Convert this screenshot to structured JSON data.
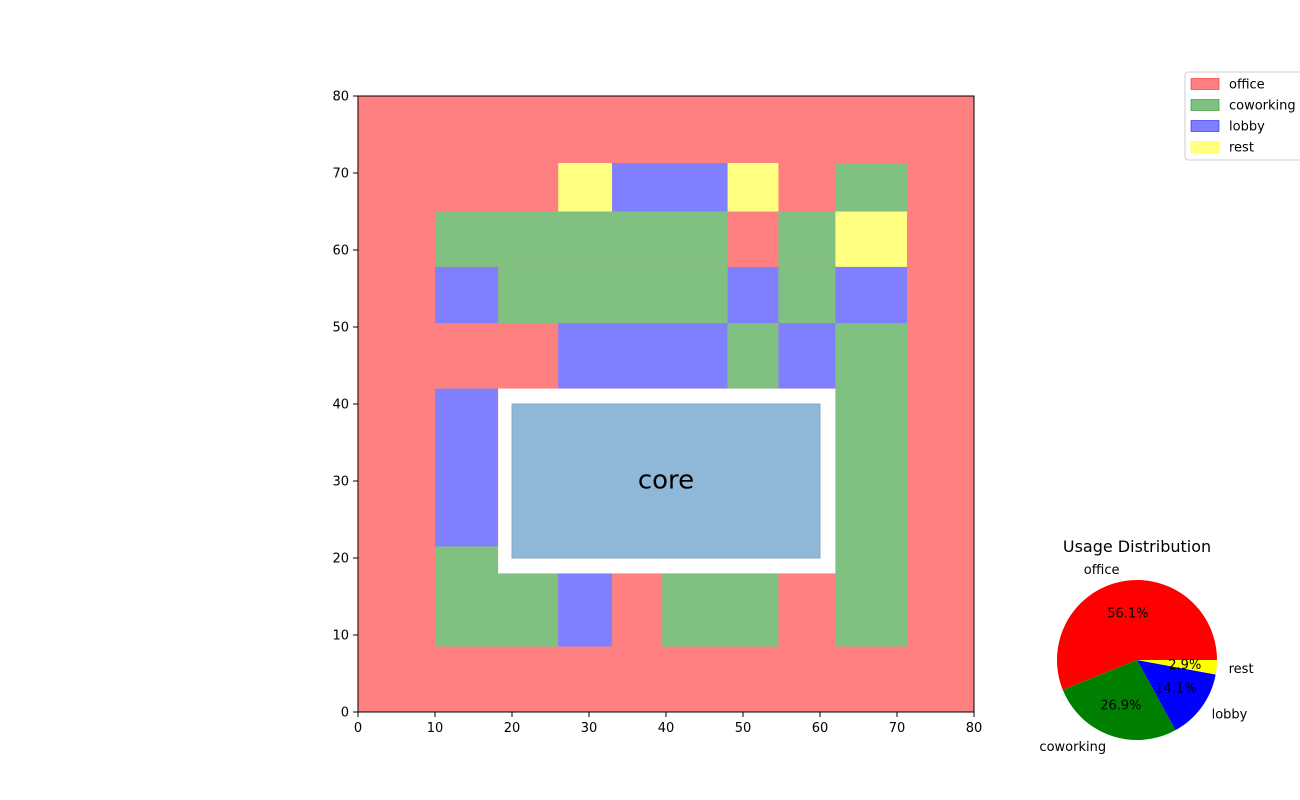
{
  "colors": {
    "office": "#ff8080",
    "coworking": "#80c080",
    "lobby": "#8080ff",
    "rest": "#ffff80",
    "core": "#8fb8d8",
    "pie_office": "#ff0000",
    "pie_coworking": "#008000",
    "pie_lobby": "#0000ff",
    "pie_rest": "#ffff00"
  },
  "chart_data": [
    {
      "type": "heatmap",
      "xlim": [
        0,
        80
      ],
      "ylim": [
        0,
        80
      ],
      "xticks": [
        0,
        10,
        20,
        30,
        40,
        50,
        60,
        70,
        80
      ],
      "yticks": [
        0,
        10,
        20,
        30,
        40,
        50,
        60,
        70,
        80
      ],
      "xtick_labels": [
        "0",
        "10",
        "20",
        "30",
        "40",
        "50",
        "60",
        "70",
        "80"
      ],
      "ytick_labels": [
        "0",
        "10",
        "20",
        "30",
        "40",
        "50",
        "60",
        "70",
        "80"
      ],
      "background_usage": "office",
      "zones": [
        {
          "usage": "rest",
          "x": [
            26,
            33
          ],
          "y": [
            65,
            71.3
          ]
        },
        {
          "usage": "lobby",
          "x": [
            33,
            48
          ],
          "y": [
            65,
            71.3
          ]
        },
        {
          "usage": "rest",
          "x": [
            48,
            54.6
          ],
          "y": [
            65,
            71.3
          ]
        },
        {
          "usage": "coworking",
          "x": [
            62,
            71.3
          ],
          "y": [
            65,
            71.3
          ]
        },
        {
          "usage": "coworking",
          "x": [
            10,
            48
          ],
          "y": [
            57.8,
            65
          ]
        },
        {
          "usage": "coworking",
          "x": [
            54.6,
            62
          ],
          "y": [
            57.8,
            65
          ]
        },
        {
          "usage": "rest",
          "x": [
            62,
            71.3
          ],
          "y": [
            57.8,
            65
          ]
        },
        {
          "usage": "lobby",
          "x": [
            10,
            18.2
          ],
          "y": [
            50.5,
            57.8
          ]
        },
        {
          "usage": "coworking",
          "x": [
            18.2,
            48
          ],
          "y": [
            50.5,
            57.8
          ]
        },
        {
          "usage": "lobby",
          "x": [
            48,
            54.6
          ],
          "y": [
            50.5,
            57.8
          ]
        },
        {
          "usage": "coworking",
          "x": [
            54.6,
            62
          ],
          "y": [
            50.5,
            57.8
          ]
        },
        {
          "usage": "lobby",
          "x": [
            62,
            71.3
          ],
          "y": [
            50.5,
            57.8
          ]
        },
        {
          "usage": "lobby",
          "x": [
            26,
            48
          ],
          "y": [
            42,
            50.5
          ]
        },
        {
          "usage": "coworking",
          "x": [
            48,
            54.6
          ],
          "y": [
            42,
            50.5
          ]
        },
        {
          "usage": "lobby",
          "x": [
            54.6,
            62
          ],
          "y": [
            42,
            50.5
          ]
        },
        {
          "usage": "coworking",
          "x": [
            62,
            71.3
          ],
          "y": [
            8.5,
            50.5
          ]
        },
        {
          "usage": "lobby",
          "x": [
            10,
            18.2
          ],
          "y": [
            21.5,
            42
          ]
        },
        {
          "usage": "coworking",
          "x": [
            10,
            26
          ],
          "y": [
            8.5,
            21.5
          ]
        },
        {
          "usage": "lobby",
          "x": [
            26,
            33
          ],
          "y": [
            8.5,
            18
          ]
        },
        {
          "usage": "coworking",
          "x": [
            39.5,
            54.6
          ],
          "y": [
            8.5,
            18
          ]
        }
      ],
      "core_clearance": {
        "x": [
          18.2,
          62
        ],
        "y": [
          18,
          42
        ]
      },
      "core": {
        "label": "core",
        "x": [
          20,
          60
        ],
        "y": [
          20,
          40
        ],
        "label_x": 40,
        "label_y": 30
      },
      "legend": {
        "placement": "upper-right-outside",
        "entries": [
          "office",
          "coworking",
          "lobby",
          "rest"
        ]
      }
    },
    {
      "type": "pie",
      "title": "Usage Distribution",
      "labels": [
        "office",
        "coworking",
        "lobby",
        "rest"
      ],
      "values": [
        56.1,
        26.9,
        14.1,
        2.9
      ],
      "pct_labels": [
        "56.1%",
        "26.9%",
        "14.1%",
        "2.9%"
      ]
    }
  ]
}
